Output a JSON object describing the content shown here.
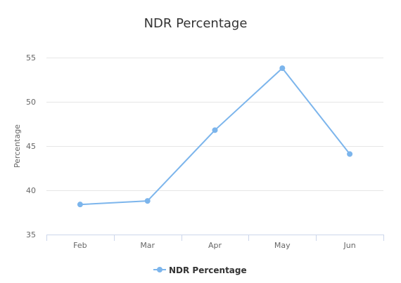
{
  "chart_data": {
    "type": "line",
    "title": "NDR Percentage",
    "xlabel": "",
    "ylabel": "Percentage",
    "categories": [
      "Feb",
      "Mar",
      "Apr",
      "May",
      "Jun"
    ],
    "yticks": [
      35,
      40,
      45,
      50,
      55
    ],
    "ylim": [
      35,
      55
    ],
    "grid": true,
    "legend_position": "bottom",
    "series": [
      {
        "name": "NDR Percentage",
        "color": "#7cb5ec",
        "values": [
          38.4,
          38.8,
          46.8,
          53.8,
          44.1
        ]
      }
    ]
  }
}
